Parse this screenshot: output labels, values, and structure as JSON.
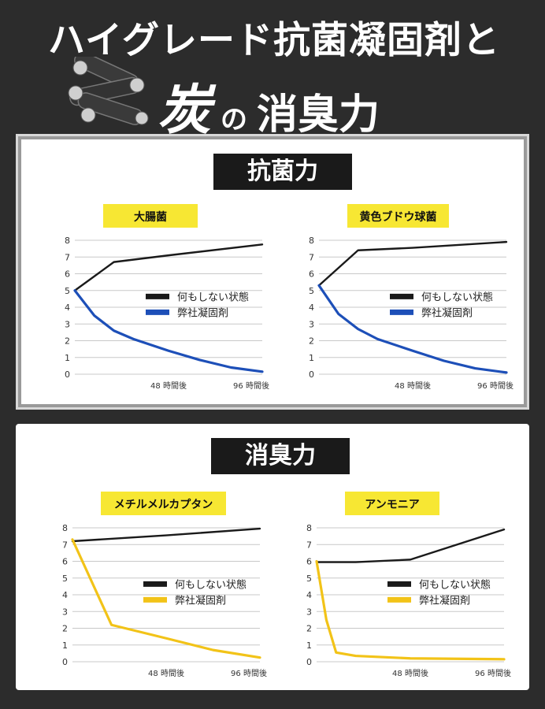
{
  "header": {
    "line1": "ハイグレード抗菌凝固剤と",
    "line2_big": "炭",
    "line2_no": "の",
    "line2_rest": "消臭力"
  },
  "sections": {
    "antibacterial": "抗菌力",
    "deodorant": "消臭力"
  },
  "colors": {
    "control": "#1a1a1a",
    "product_blue": "#1d4fb8",
    "product_yellow": "#f2c318",
    "label_yellow": "#f7e733"
  },
  "chart_data": [
    {
      "type": "line",
      "title": "大腸菌",
      "categories": [
        "0",
        "48 時間後",
        "96 時間後"
      ],
      "ylim": [
        0,
        8
      ],
      "yticks": [
        "0",
        "1",
        "2",
        "3",
        "4",
        "5",
        "6",
        "7",
        "8"
      ],
      "xticks": [
        "48 時間後",
        "96 時間後"
      ],
      "grid": true,
      "legend": "center-right",
      "series": [
        {
          "name": "何もしない状態",
          "color": "#1a1a1a",
          "x": [
            0,
            20,
            48,
            96
          ],
          "y": [
            5,
            6.7,
            7.1,
            7.75
          ]
        },
        {
          "name": "弊社凝固剤",
          "color": "#1d4fb8",
          "x": [
            0,
            10,
            20,
            30,
            48,
            64,
            80,
            96
          ],
          "y": [
            5,
            3.5,
            2.6,
            2.1,
            1.4,
            0.85,
            0.4,
            0.15
          ]
        }
      ]
    },
    {
      "type": "line",
      "title": "黄色ブドウ球菌",
      "categories": [
        "0",
        "48 時間後",
        "96 時間後"
      ],
      "ylim": [
        0,
        8
      ],
      "yticks": [
        "0",
        "1",
        "2",
        "3",
        "4",
        "5",
        "6",
        "7",
        "8"
      ],
      "xticks": [
        "48 時間後",
        "96 時間後"
      ],
      "grid": true,
      "legend": "center-right",
      "series": [
        {
          "name": "何もしない状態",
          "color": "#1a1a1a",
          "x": [
            0,
            20,
            48,
            96
          ],
          "y": [
            5.3,
            7.4,
            7.55,
            7.9
          ]
        },
        {
          "name": "弊社凝固剤",
          "color": "#1d4fb8",
          "x": [
            0,
            10,
            20,
            30,
            48,
            64,
            80,
            96
          ],
          "y": [
            5.3,
            3.6,
            2.7,
            2.1,
            1.4,
            0.8,
            0.35,
            0.1
          ]
        }
      ]
    },
    {
      "type": "line",
      "title": "メチルメルカプタン",
      "categories": [
        "0",
        "48 時間後",
        "96 時間後"
      ],
      "ylim": [
        0,
        8
      ],
      "yticks": [
        "0",
        "1",
        "2",
        "3",
        "4",
        "5",
        "6",
        "7",
        "8"
      ],
      "xticks": [
        "48 時間後",
        "96 時間後"
      ],
      "grid": true,
      "legend": "center-right",
      "series": [
        {
          "name": "何もしない状態",
          "color": "#1a1a1a",
          "x": [
            0,
            48,
            96
          ],
          "y": [
            7.2,
            7.55,
            7.95
          ]
        },
        {
          "name": "弊社凝固剤",
          "color": "#f2c318",
          "x": [
            0,
            20,
            48,
            72,
            96
          ],
          "y": [
            7.3,
            2.2,
            1.4,
            0.7,
            0.25
          ]
        }
      ]
    },
    {
      "type": "line",
      "title": "アンモニア",
      "categories": [
        "0",
        "48 時間後",
        "96 時間後"
      ],
      "ylim": [
        0,
        8
      ],
      "yticks": [
        "0",
        "1",
        "2",
        "3",
        "4",
        "5",
        "6",
        "7",
        "8"
      ],
      "xticks": [
        "48 時間後",
        "96 時間後"
      ],
      "grid": true,
      "legend": "center-right",
      "series": [
        {
          "name": "何もしない状態",
          "color": "#1a1a1a",
          "x": [
            0,
            20,
            48,
            96
          ],
          "y": [
            5.95,
            5.95,
            6.1,
            7.9
          ]
        },
        {
          "name": "弊社凝固剤",
          "color": "#f2c318",
          "x": [
            0,
            5,
            10,
            20,
            48,
            96
          ],
          "y": [
            6,
            2.5,
            0.55,
            0.35,
            0.2,
            0.15
          ]
        }
      ]
    }
  ]
}
